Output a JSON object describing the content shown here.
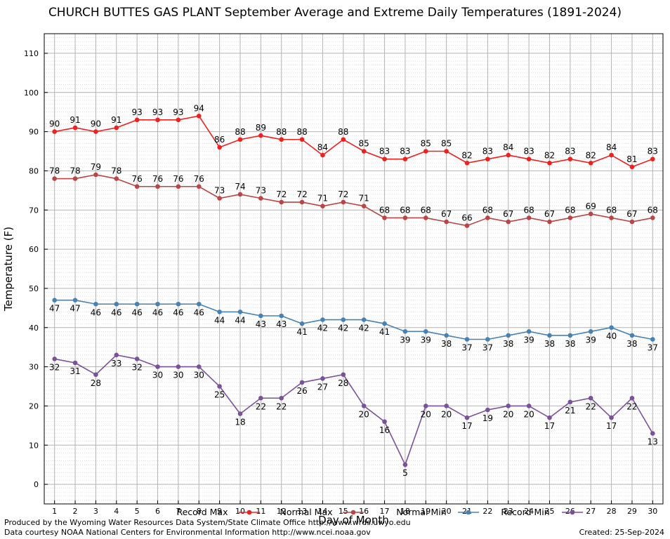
{
  "chart_data": {
    "type": "line",
    "title": "CHURCH BUTTES GAS PLANT September Average and Extreme Daily Temperatures (1891-2024)",
    "xlabel": "Day of Month",
    "ylabel": "Temperature (F)",
    "x": [
      1,
      2,
      3,
      4,
      5,
      6,
      7,
      8,
      9,
      10,
      11,
      12,
      13,
      14,
      15,
      16,
      17,
      18,
      19,
      20,
      21,
      22,
      23,
      24,
      25,
      26,
      27,
      28,
      29,
      30
    ],
    "ylim": [
      -5,
      115
    ],
    "yticks": [
      0,
      10,
      20,
      30,
      40,
      50,
      60,
      70,
      80,
      90,
      100,
      110
    ],
    "grid": true,
    "legend_position": "bottom",
    "series": [
      {
        "name": "Record Max",
        "color": "#ee2020",
        "label_pos": "above",
        "values": [
          90,
          91,
          90,
          91,
          93,
          93,
          93,
          94,
          86,
          88,
          89,
          88,
          88,
          84,
          88,
          85,
          83,
          83,
          85,
          85,
          82,
          83,
          84,
          83,
          82,
          83,
          82,
          84,
          81,
          83
        ]
      },
      {
        "name": "Normal Max",
        "color": "#bb4444",
        "label_pos": "above",
        "values": [
          78,
          78,
          79,
          78,
          76,
          76,
          76,
          76,
          73,
          74,
          73,
          72,
          72,
          71,
          72,
          71,
          68,
          68,
          68,
          67,
          66,
          68,
          67,
          68,
          67,
          68,
          69,
          68,
          67,
          68
        ]
      },
      {
        "name": "Normal Min",
        "color": "#4682b4",
        "label_pos": "below",
        "values": [
          47,
          47,
          46,
          46,
          46,
          46,
          46,
          46,
          44,
          44,
          43,
          43,
          41,
          42,
          42,
          42,
          41,
          39,
          39,
          38,
          37,
          37,
          38,
          39,
          38,
          38,
          39,
          40,
          38,
          37
        ]
      },
      {
        "name": "Record Min",
        "color": "#7b519b",
        "label_pos": "below",
        "values": [
          32,
          31,
          28,
          33,
          32,
          30,
          30,
          30,
          25,
          18,
          22,
          22,
          26,
          27,
          28,
          20,
          16,
          5,
          20,
          20,
          17,
          19,
          20,
          20,
          17,
          21,
          22,
          17,
          22,
          13
        ]
      }
    ]
  },
  "footer": {
    "produced": "Produced by the Wyoming Water Resources Data System/State Climate Office http://www.wrds.uwyo.edu",
    "courtesy": "Data courtesy NOAA National Centers for Environmental Information http://www.ncei.noaa.gov",
    "created": "Created:  25-Sep-2024"
  }
}
